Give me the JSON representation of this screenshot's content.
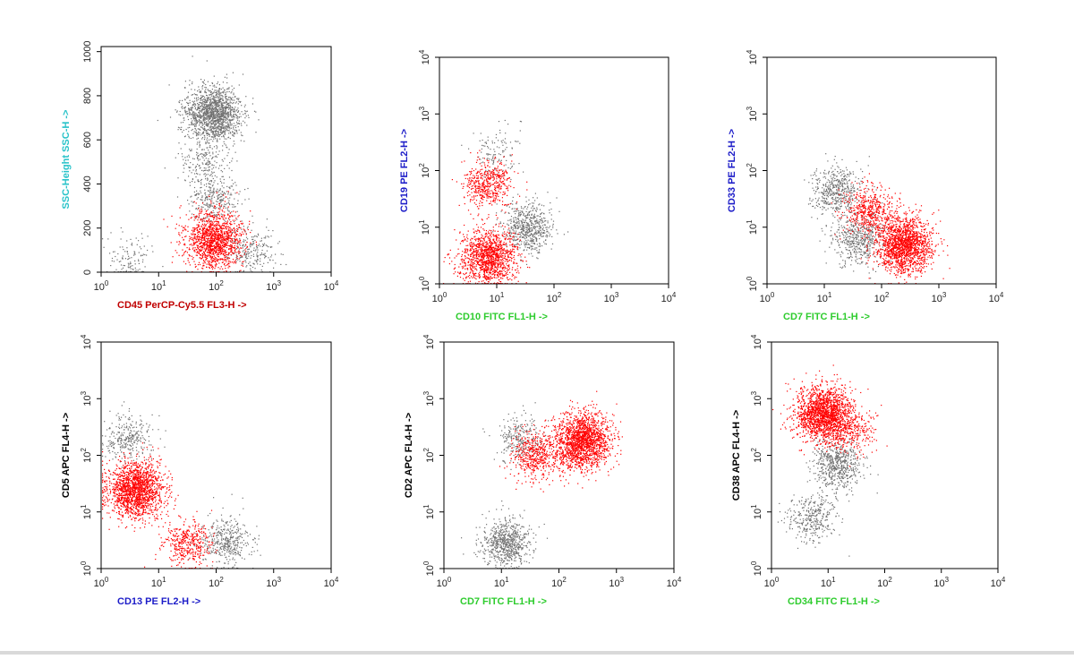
{
  "chart_data": [
    {
      "type": "scatter",
      "xlabel": "CD45 PerCP-Cy5.5 FL3-H ->",
      "ylabel": "SSC-Height SSC-H ->",
      "xlabel_color": "#c00000",
      "ylabel_color": "#29c3c9",
      "xscale": "log",
      "yscale": "linear",
      "xlim": [
        1,
        10000
      ],
      "ylim": [
        0,
        1023
      ],
      "xticks": [
        "10^0",
        "10^1",
        "10^2",
        "10^3",
        "10^4"
      ],
      "yticks": [
        "0",
        "200",
        "400",
        "600",
        "800",
        "1000"
      ],
      "series": [
        {
          "color": "#ff0000",
          "clusters": [
            {
              "x": 90,
              "y": 150,
              "n": 1400
            }
          ]
        },
        {
          "color": "#707070",
          "clusters": [
            {
              "x": 90,
              "y": 720,
              "n": 1500
            },
            {
              "x": 90,
              "y": 330,
              "n": 300
            },
            {
              "x": 400,
              "y": 100,
              "n": 250
            },
            {
              "x": 3,
              "y": 60,
              "n": 120
            },
            {
              "x": 60,
              "y": 500,
              "n": 200
            }
          ]
        }
      ]
    },
    {
      "type": "scatter",
      "xlabel": "CD10 FITC FL1-H ->",
      "ylabel": "CD19 PE FL2-H ->",
      "xlabel_color": "#2ecc2e",
      "ylabel_color": "#1c1cc8",
      "xscale": "log",
      "yscale": "log",
      "xlim": [
        1,
        10000
      ],
      "ylim": [
        1,
        10000
      ],
      "xticks": [
        "10^0",
        "10^1",
        "10^2",
        "10^3",
        "10^4"
      ],
      "yticks": [
        "10^0",
        "10^1",
        "10^2",
        "10^3",
        "10^4"
      ],
      "series": [
        {
          "color": "#ff0000",
          "clusters": [
            {
              "x": 7,
              "y": 3,
              "n": 1300
            },
            {
              "x": 7,
              "y": 60,
              "n": 500
            }
          ]
        },
        {
          "color": "#707070",
          "clusters": [
            {
              "x": 35,
              "y": 10,
              "n": 600
            },
            {
              "x": 10,
              "y": 200,
              "n": 120
            }
          ]
        }
      ]
    },
    {
      "type": "scatter",
      "xlabel": "CD7 FITC FL1-H ->",
      "ylabel": "CD33 PE FL2-H ->",
      "xlabel_color": "#2ecc2e",
      "ylabel_color": "#1c1cc8",
      "xscale": "log",
      "yscale": "log",
      "xlim": [
        1,
        10000
      ],
      "ylim": [
        1,
        10000
      ],
      "xticks": [
        "10^0",
        "10^1",
        "10^2",
        "10^3",
        "10^4"
      ],
      "yticks": [
        "10^0",
        "10^1",
        "10^2",
        "10^3",
        "10^4"
      ],
      "series": [
        {
          "color": "#ff0000",
          "clusters": [
            {
              "x": 250,
              "y": 5,
              "n": 1700
            },
            {
              "x": 60,
              "y": 20,
              "n": 500
            }
          ]
        },
        {
          "color": "#707070",
          "clusters": [
            {
              "x": 16,
              "y": 45,
              "n": 500
            },
            {
              "x": 40,
              "y": 6,
              "n": 500
            }
          ]
        }
      ]
    },
    {
      "type": "scatter",
      "xlabel": "CD13 PE FL2-H ->",
      "ylabel": "CD5 APC FL4-H ->",
      "xlabel_color": "#1c1cc8",
      "ylabel_color": "#000000",
      "xscale": "log",
      "yscale": "log",
      "xlim": [
        1,
        10000
      ],
      "ylim": [
        1,
        10000
      ],
      "xticks": [
        "10^0",
        "10^1",
        "10^2",
        "10^3",
        "10^4"
      ],
      "yticks": [
        "10^0",
        "10^1",
        "10^2",
        "10^3",
        "10^4"
      ],
      "series": [
        {
          "color": "#ff0000",
          "clusters": [
            {
              "x": 4,
              "y": 25,
              "n": 1700
            },
            {
              "x": 30,
              "y": 3,
              "n": 400
            }
          ]
        },
        {
          "color": "#707070",
          "clusters": [
            {
              "x": 3,
              "y": 200,
              "n": 300
            },
            {
              "x": 150,
              "y": 3,
              "n": 400
            }
          ]
        }
      ]
    },
    {
      "type": "scatter",
      "xlabel": "CD7 FITC FL1-H ->",
      "ylabel": "CD2 APC FL4-H ->",
      "xlabel_color": "#2ecc2e",
      "ylabel_color": "#000000",
      "xscale": "log",
      "yscale": "log",
      "xlim": [
        1,
        10000
      ],
      "ylim": [
        1,
        10000
      ],
      "xticks": [
        "10^0",
        "10^1",
        "10^2",
        "10^3",
        "10^4"
      ],
      "yticks": [
        "10^0",
        "10^1",
        "10^2",
        "10^3",
        "10^4"
      ],
      "series": [
        {
          "color": "#ff0000",
          "clusters": [
            {
              "x": 250,
              "y": 180,
              "n": 1800
            },
            {
              "x": 40,
              "y": 100,
              "n": 500
            }
          ]
        },
        {
          "color": "#707070",
          "clusters": [
            {
              "x": 12,
              "y": 3,
              "n": 700
            },
            {
              "x": 20,
              "y": 200,
              "n": 250
            }
          ]
        }
      ]
    },
    {
      "type": "scatter",
      "xlabel": "CD34 FITC FL1-H ->",
      "ylabel": "CD38 APC FL4-H ->",
      "xlabel_color": "#2ecc2e",
      "ylabel_color": "#000000",
      "xscale": "log",
      "yscale": "log",
      "xlim": [
        1,
        10000
      ],
      "ylim": [
        1,
        10000
      ],
      "xticks": [
        "10^0",
        "10^1",
        "10^2",
        "10^3",
        "10^4"
      ],
      "yticks": [
        "10^0",
        "10^1",
        "10^2",
        "10^3",
        "10^4"
      ],
      "series": [
        {
          "color": "#ff0000",
          "clusters": [
            {
              "x": 8,
              "y": 550,
              "n": 1800
            },
            {
              "x": 25,
              "y": 300,
              "n": 300
            }
          ]
        },
        {
          "color": "#707070",
          "clusters": [
            {
              "x": 14,
              "y": 70,
              "n": 600
            },
            {
              "x": 5,
              "y": 8,
              "n": 350
            }
          ]
        }
      ]
    }
  ]
}
